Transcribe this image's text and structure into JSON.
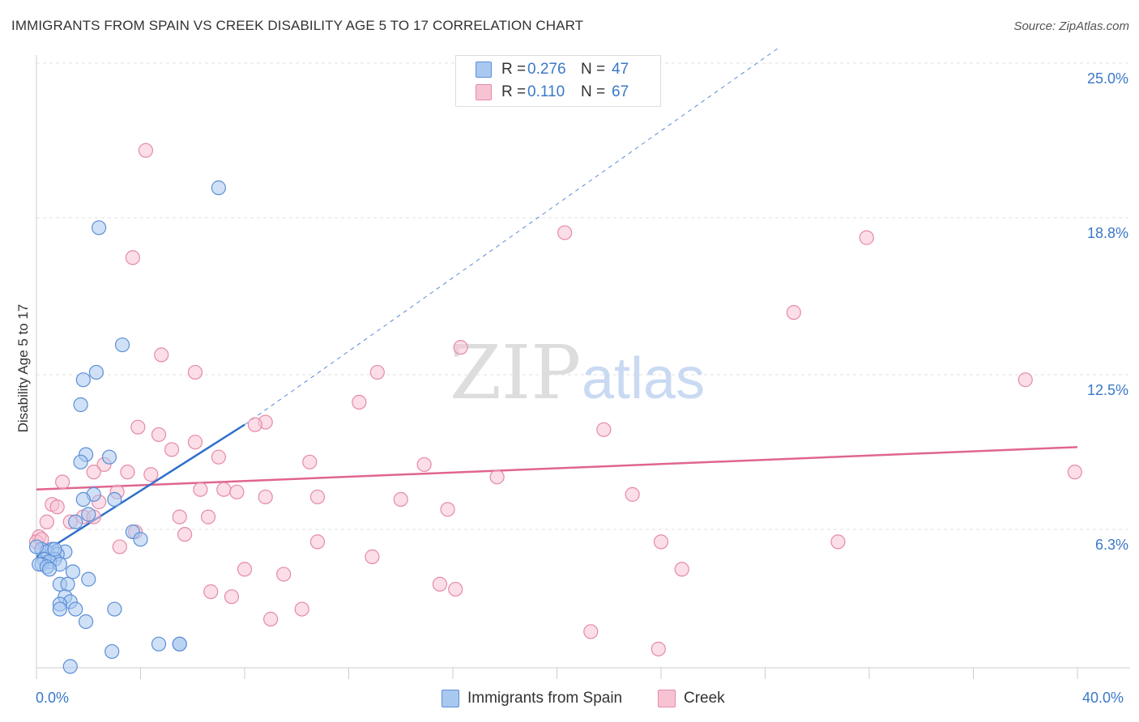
{
  "header": {
    "title": "IMMIGRANTS FROM SPAIN VS CREEK DISABILITY AGE 5 TO 17 CORRELATION CHART",
    "source": "Source: ZipAtlas.com"
  },
  "watermark": {
    "zip": "ZIP",
    "atlas": "atlas"
  },
  "legend": {
    "rows": [
      {
        "r_label": "R =",
        "r_value": "0.276",
        "n_label": "N =",
        "n_value": "47"
      },
      {
        "r_label": "R =",
        "r_value": "0.110",
        "n_label": "N =",
        "n_value": "67"
      }
    ]
  },
  "bottom_legend": [
    "Immigrants from Spain",
    "Creek"
  ],
  "x_axis_labels": {
    "min": "0.0%",
    "max": "40.0%"
  },
  "colors": {
    "blue_fill": "#a9c8f0",
    "blue_stroke": "#5b8fd6",
    "blue_line": "#2f6fcc",
    "pink_fill": "#f7c3d3",
    "pink_stroke": "#e58aa8",
    "pink_line": "#e0658f",
    "tick_label": "#3b78c8",
    "grid": "#e0e0e0"
  },
  "chart_data": {
    "type": "scatter",
    "title": "IMMIGRANTS FROM SPAIN VS CREEK DISABILITY AGE 5 TO 17 CORRELATION CHART",
    "xlabel": "",
    "ylabel": "Disability Age 5 to 17",
    "xlim": [
      0,
      40
    ],
    "ylim": [
      0,
      26.5
    ],
    "y_ticks": [
      6.3,
      12.5,
      18.8,
      25.0
    ],
    "y_tick_labels": [
      "6.3%",
      "12.5%",
      "18.8%",
      "25.0%"
    ],
    "series": [
      {
        "name": "Immigrants from Spain",
        "color": "blue",
        "R": 0.276,
        "N": 47,
        "trend": {
          "x0": 0.0,
          "y0": 5.2,
          "x1": 8.0,
          "y1": 10.5,
          "dash_x1": 28.5,
          "dash_y1": 25.6
        },
        "points": [
          [
            7.0,
            20.0
          ],
          [
            2.4,
            18.4
          ],
          [
            3.3,
            13.7
          ],
          [
            2.3,
            12.6
          ],
          [
            1.8,
            12.3
          ],
          [
            1.7,
            11.3
          ],
          [
            1.9,
            9.3
          ],
          [
            2.8,
            9.2
          ],
          [
            1.7,
            9.0
          ],
          [
            2.2,
            7.7
          ],
          [
            3.0,
            7.5
          ],
          [
            1.8,
            7.5
          ],
          [
            2.0,
            6.9
          ],
          [
            1.5,
            6.6
          ],
          [
            3.7,
            6.2
          ],
          [
            4.0,
            5.9
          ],
          [
            0.2,
            5.5
          ],
          [
            0.6,
            5.5
          ],
          [
            0.4,
            5.4
          ],
          [
            1.1,
            5.4
          ],
          [
            0.8,
            5.3
          ],
          [
            0.7,
            5.1
          ],
          [
            0.3,
            5.1
          ],
          [
            0.5,
            5.0
          ],
          [
            0.2,
            4.9
          ],
          [
            0.1,
            4.9
          ],
          [
            0.4,
            4.8
          ],
          [
            0.9,
            4.9
          ],
          [
            0.5,
            4.7
          ],
          [
            1.4,
            4.6
          ],
          [
            2.0,
            4.3
          ],
          [
            0.9,
            4.1
          ],
          [
            1.2,
            4.1
          ],
          [
            1.1,
            3.6
          ],
          [
            1.3,
            3.4
          ],
          [
            0.9,
            3.3
          ],
          [
            1.5,
            3.1
          ],
          [
            0.9,
            3.1
          ],
          [
            3.0,
            3.1
          ],
          [
            1.9,
            2.6
          ],
          [
            4.7,
            1.7
          ],
          [
            5.5,
            1.7
          ],
          [
            5.5,
            1.7
          ],
          [
            2.9,
            1.4
          ],
          [
            1.3,
            0.8
          ],
          [
            0.0,
            5.6
          ],
          [
            0.7,
            5.5
          ]
        ]
      },
      {
        "name": "Creek",
        "color": "pink",
        "R": 0.11,
        "N": 67,
        "trend": {
          "x0": 0.0,
          "y0": 7.9,
          "x1": 40.0,
          "y1": 9.6
        },
        "points": [
          [
            4.2,
            21.5
          ],
          [
            3.7,
            17.2
          ],
          [
            20.3,
            18.2
          ],
          [
            31.9,
            18.0
          ],
          [
            29.1,
            15.0
          ],
          [
            16.3,
            13.6
          ],
          [
            4.8,
            13.3
          ],
          [
            6.1,
            12.6
          ],
          [
            13.1,
            12.6
          ],
          [
            38.0,
            12.3
          ],
          [
            12.4,
            11.4
          ],
          [
            8.8,
            10.6
          ],
          [
            8.4,
            10.5
          ],
          [
            3.9,
            10.4
          ],
          [
            21.8,
            10.3
          ],
          [
            4.7,
            10.1
          ],
          [
            6.1,
            9.8
          ],
          [
            5.2,
            9.5
          ],
          [
            7.0,
            9.2
          ],
          [
            10.5,
            9.0
          ],
          [
            14.9,
            8.9
          ],
          [
            2.6,
            8.9
          ],
          [
            2.2,
            8.6
          ],
          [
            3.5,
            8.6
          ],
          [
            4.4,
            8.5
          ],
          [
            17.7,
            8.4
          ],
          [
            39.9,
            8.6
          ],
          [
            1.0,
            8.2
          ],
          [
            6.3,
            7.9
          ],
          [
            7.2,
            7.9
          ],
          [
            7.7,
            7.8
          ],
          [
            3.1,
            7.8
          ],
          [
            8.8,
            7.6
          ],
          [
            22.9,
            7.7
          ],
          [
            10.8,
            7.6
          ],
          [
            14.0,
            7.5
          ],
          [
            2.4,
            7.4
          ],
          [
            0.6,
            7.3
          ],
          [
            0.8,
            7.2
          ],
          [
            15.8,
            7.1
          ],
          [
            1.8,
            6.8
          ],
          [
            2.2,
            6.8
          ],
          [
            5.5,
            6.8
          ],
          [
            6.6,
            6.8
          ],
          [
            1.3,
            6.6
          ],
          [
            0.4,
            6.6
          ],
          [
            3.8,
            6.2
          ],
          [
            5.7,
            6.1
          ],
          [
            3.2,
            5.6
          ],
          [
            10.8,
            5.8
          ],
          [
            24.0,
            5.8
          ],
          [
            30.8,
            5.8
          ],
          [
            12.9,
            5.2
          ],
          [
            8.0,
            4.7
          ],
          [
            24.8,
            4.7
          ],
          [
            9.5,
            4.5
          ],
          [
            15.5,
            4.1
          ],
          [
            16.1,
            3.9
          ],
          [
            6.7,
            3.8
          ],
          [
            7.5,
            3.6
          ],
          [
            10.2,
            3.1
          ],
          [
            9.0,
            2.7
          ],
          [
            21.3,
            2.2
          ],
          [
            23.9,
            1.5
          ],
          [
            0.1,
            6.0
          ],
          [
            0.0,
            5.8
          ],
          [
            0.2,
            5.9
          ]
        ]
      }
    ]
  }
}
